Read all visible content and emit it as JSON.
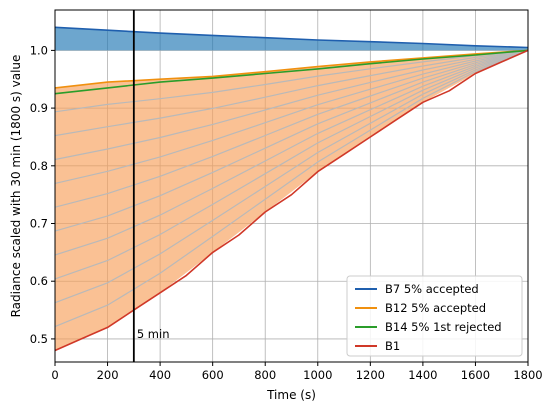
{
  "chart_data": {
    "type": "line",
    "title": "",
    "xlabel": "Time (s)",
    "ylabel": "Radiance scaled with 30 min (1800 s) value",
    "xlim": [
      0,
      1800
    ],
    "ylim": [
      0.46,
      1.07
    ],
    "xticks": [
      0,
      200,
      400,
      600,
      800,
      1000,
      1200,
      1400,
      1600,
      1800
    ],
    "yticks": [
      0.5,
      0.6,
      0.7,
      0.8,
      0.9,
      1.0
    ],
    "grid": true,
    "legend_position": "lower-right",
    "vertical_marker": {
      "x": 300,
      "label": "5 min",
      "color": "#000000"
    },
    "bands": [
      {
        "color": "#f8a05a",
        "x": [
          0,
          200,
          400,
          600,
          800,
          1000,
          1200,
          1400,
          1600,
          1800
        ],
        "upper": [
          0.935,
          0.945,
          0.95,
          0.955,
          0.963,
          0.972,
          0.98,
          0.987,
          0.994,
          1.0
        ],
        "lower": [
          0.48,
          0.52,
          0.58,
          0.65,
          0.72,
          0.79,
          0.85,
          0.91,
          0.96,
          1.0
        ]
      },
      {
        "color": "#1f77b4",
        "x": [
          0,
          200,
          400,
          600,
          800,
          1000,
          1200,
          1400,
          1600,
          1800
        ],
        "upper": [
          1.04,
          1.035,
          1.03,
          1.026,
          1.022,
          1.018,
          1.015,
          1.012,
          1.008,
          1.005
        ],
        "lower": [
          1.0,
          1.0,
          1.0,
          1.0,
          1.0,
          1.0,
          1.0,
          1.0,
          1.0,
          1.0
        ]
      }
    ],
    "series": [
      {
        "name": "B7 5% accepted",
        "color": "#1f5fae",
        "x": [
          0,
          200,
          400,
          600,
          800,
          1000,
          1200,
          1400,
          1600,
          1800
        ],
        "y": [
          1.04,
          1.035,
          1.03,
          1.026,
          1.022,
          1.018,
          1.015,
          1.012,
          1.008,
          1.005
        ]
      },
      {
        "name": "B12 5% accepted",
        "color": "#f0900f",
        "x": [
          0,
          200,
          400,
          600,
          800,
          1000,
          1200,
          1400,
          1600,
          1800
        ],
        "y": [
          0.935,
          0.945,
          0.95,
          0.955,
          0.963,
          0.972,
          0.98,
          0.987,
          0.994,
          1.0
        ]
      },
      {
        "name": "B14 5% 1st rejected",
        "color": "#2a9d2a",
        "x": [
          0,
          200,
          400,
          600,
          800,
          1000,
          1200,
          1400,
          1600,
          1800
        ],
        "y": [
          0.925,
          0.935,
          0.945,
          0.952,
          0.96,
          0.968,
          0.977,
          0.985,
          0.992,
          1.0
        ]
      },
      {
        "name": "B1",
        "color": "#d03828",
        "x": [
          0,
          100,
          200,
          300,
          400,
          500,
          600,
          700,
          800,
          900,
          1000,
          1100,
          1200,
          1300,
          1400,
          1500,
          1600,
          1700,
          1800
        ],
        "y": [
          0.48,
          0.5,
          0.52,
          0.55,
          0.58,
          0.61,
          0.65,
          0.68,
          0.72,
          0.75,
          0.79,
          0.82,
          0.85,
          0.88,
          0.91,
          0.93,
          0.96,
          0.98,
          1.0
        ]
      }
    ],
    "background_series_color": "#b9b9b9"
  }
}
